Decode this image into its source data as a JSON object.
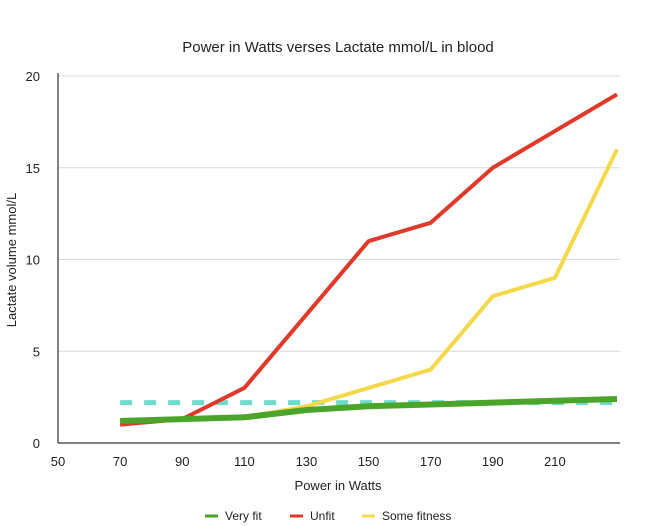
{
  "chart_data": {
    "type": "line",
    "title": "Power in Watts verses Lactate mmol/L in blood",
    "xlabel": "Power in Watts",
    "ylabel": "Lactate volume mmol/L",
    "xlim": [
      50,
      230
    ],
    "ylim": [
      0,
      20
    ],
    "x_ticks": [
      50,
      70,
      90,
      110,
      130,
      150,
      170,
      190,
      210
    ],
    "y_ticks": [
      0,
      5,
      10,
      15,
      20
    ],
    "grid": "horizontal",
    "legend_position": "bottom",
    "x": [
      70,
      90,
      110,
      130,
      150,
      170,
      190,
      210,
      230
    ],
    "series": [
      {
        "name": "Very fit",
        "color": "#4aa52a",
        "values": [
          1.2,
          1.3,
          1.4,
          1.8,
          2.0,
          2.1,
          2.2,
          2.3,
          2.4
        ]
      },
      {
        "name": "Unfit",
        "color": "#e0392a",
        "values": [
          1.0,
          1.3,
          3.0,
          7.0,
          11.0,
          12.0,
          15.0,
          17.0,
          19.0
        ]
      },
      {
        "name": "Some fitness",
        "color": "#f5d94a",
        "values": [
          1.2,
          1.3,
          1.4,
          2.0,
          3.0,
          4.0,
          8.0,
          9.0,
          16.0
        ]
      }
    ],
    "reference_line": {
      "value": 2.2,
      "color": "#6fdccb",
      "style": "dashed"
    }
  }
}
